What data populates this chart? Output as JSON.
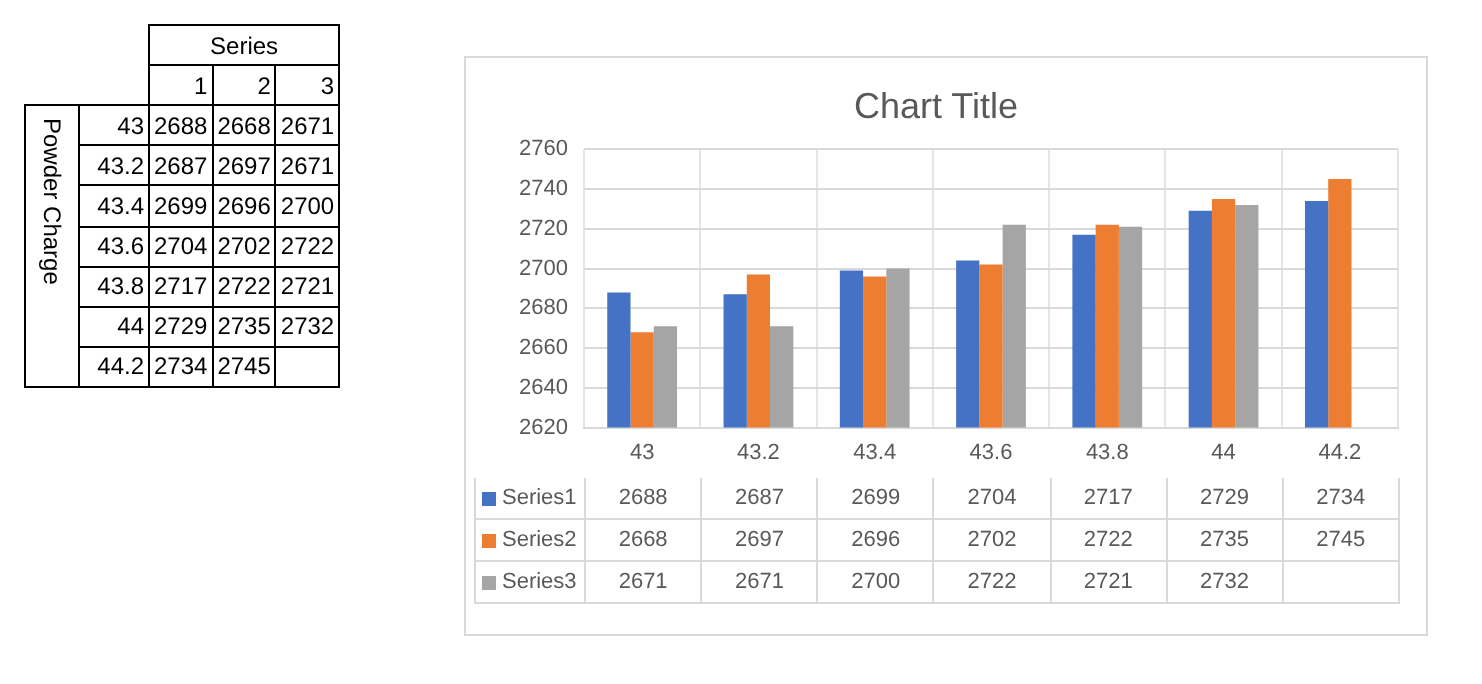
{
  "chart_data": [
    {
      "type": "heatmap",
      "xlabel": "Series",
      "ylabel": "Powder Charge",
      "data_labels": true,
      "categories": [
        "1",
        "2",
        "3"
      ],
      "y_categories": [
        "43",
        "43.2",
        "43.4",
        "43.6",
        "43.8",
        "44",
        "44.2"
      ],
      "cells": [
        [
          2688,
          2668,
          2671
        ],
        [
          2687,
          2697,
          2671
        ],
        [
          2699,
          2696,
          2700
        ],
        [
          2704,
          2702,
          2722
        ],
        [
          2717,
          2722,
          2721
        ],
        [
          2729,
          2735,
          2732
        ],
        [
          2734,
          2745,
          null
        ]
      ]
    },
    {
      "type": "bar",
      "title": "Chart Title",
      "categories": [
        "43",
        "43.2",
        "43.4",
        "43.6",
        "43.8",
        "44",
        "44.2"
      ],
      "series": [
        {
          "name": "Series1",
          "color": "#4472c4",
          "values": [
            2688,
            2687,
            2699,
            2704,
            2717,
            2729,
            2734
          ]
        },
        {
          "name": "Series2",
          "color": "#ed7d31",
          "values": [
            2668,
            2697,
            2696,
            2702,
            2722,
            2735,
            2745
          ]
        },
        {
          "name": "Series3",
          "color": "#a5a5a5",
          "values": [
            2671,
            2671,
            2700,
            2722,
            2721,
            2732,
            null
          ]
        }
      ],
      "ylim": [
        2620,
        2760
      ],
      "yticks": [
        2620,
        2640,
        2660,
        2680,
        2700,
        2720,
        2740,
        2760
      ],
      "grid": "y",
      "data_labels": true,
      "legend": "bottom"
    }
  ]
}
